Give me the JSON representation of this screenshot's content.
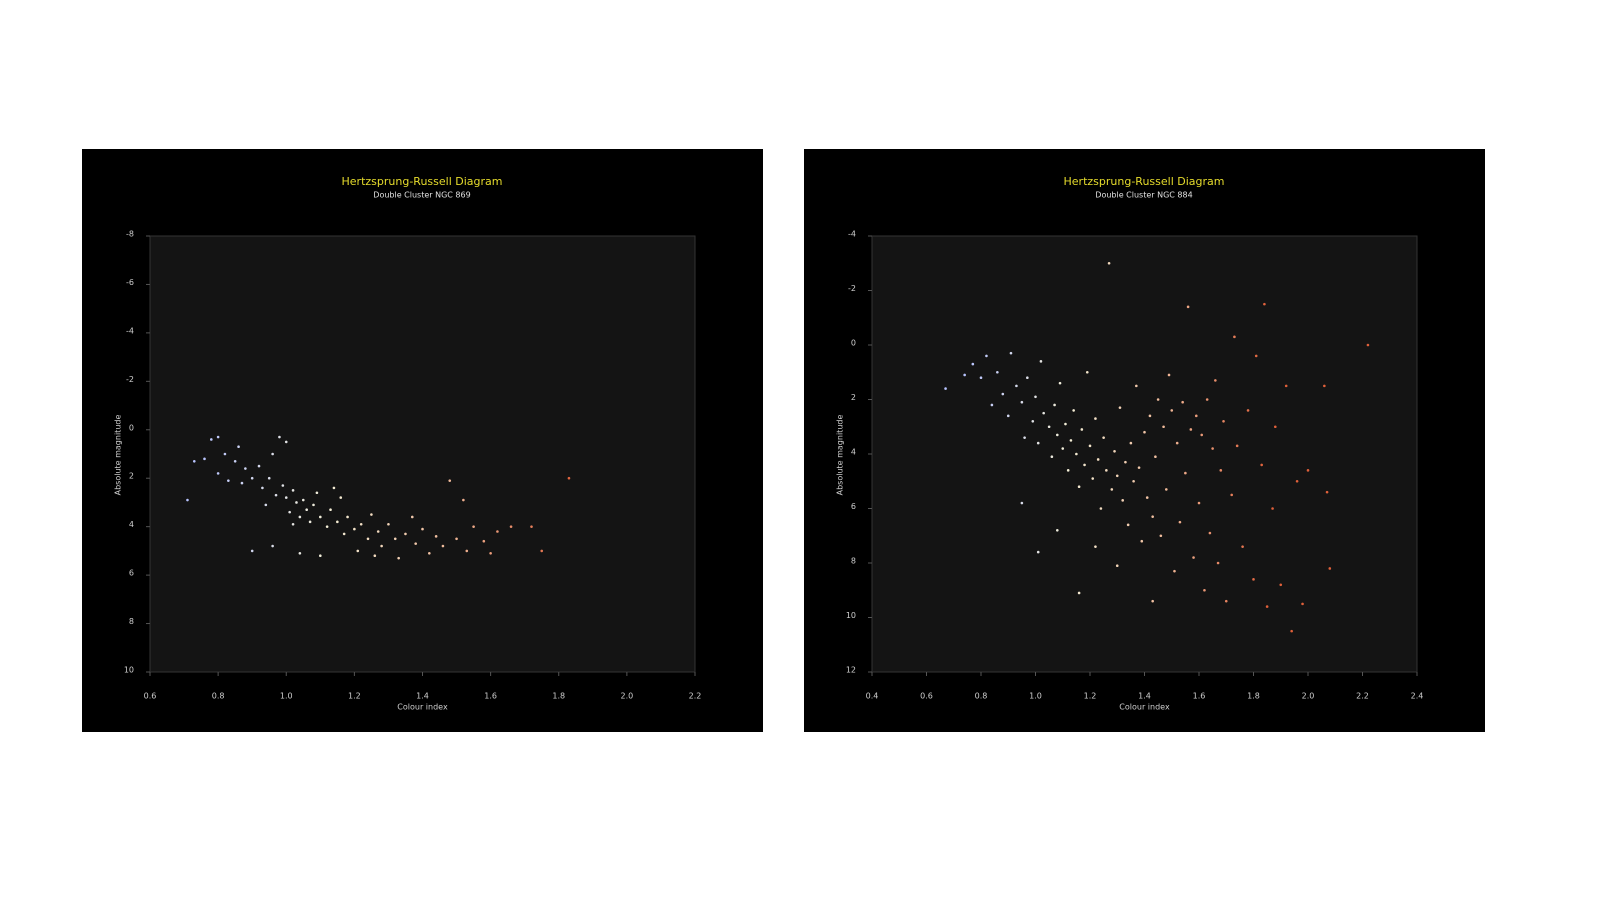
{
  "chart_data": [
    {
      "type": "scatter",
      "title": "Hertzsprung-Russell Diagram",
      "subtitle": "Double Cluster NGC 869",
      "x_label": "Colour index",
      "y_label": "Absolute magnitude",
      "xlim": [
        0.6,
        2.2
      ],
      "xticks": [
        0.6,
        0.8,
        {
          "value": 1,
          "label": "1.0"
        },
        1.2,
        1.4,
        1.6,
        1.8,
        {
          "value": 2,
          "label": "2.0"
        },
        2.2
      ],
      "ylim": [
        -8,
        10
      ],
      "yticks": [
        -8,
        -6,
        -4,
        -2,
        0,
        2,
        4,
        6,
        8,
        10
      ],
      "y_inverted": true,
      "color_stops": [
        "#b8c4ff",
        "#f4f0d8",
        "#f0b898",
        "#e0603a"
      ],
      "x": [
        0.71,
        0.73,
        0.76,
        0.78,
        0.8,
        0.8,
        0.82,
        0.83,
        0.85,
        0.86,
        0.88,
        0.9,
        0.9,
        0.92,
        0.93,
        0.95,
        0.96,
        0.97,
        0.98,
        0.99,
        1.0,
        1.0,
        1.01,
        1.02,
        1.03,
        1.04,
        1.05,
        1.06,
        1.07,
        1.08,
        1.09,
        1.1,
        1.1,
        1.12,
        1.13,
        1.15,
        1.16,
        1.17,
        1.18,
        1.2,
        1.21,
        1.22,
        1.24,
        1.25,
        1.27,
        1.28,
        1.3,
        1.32,
        1.33,
        1.35,
        1.37,
        1.38,
        1.4,
        1.42,
        1.44,
        1.46,
        1.48,
        1.5,
        1.52,
        1.53,
        1.55,
        1.58,
        1.6,
        1.62,
        1.66,
        1.72,
        1.75,
        1.83,
        0.96,
        1.04,
        1.14,
        1.26,
        0.87,
        0.94,
        1.02
      ],
      "values": [
        2.9,
        1.3,
        1.2,
        0.4,
        0.3,
        1.8,
        1.0,
        2.1,
        1.3,
        0.7,
        1.6,
        2.0,
        5.0,
        1.5,
        2.4,
        2.0,
        1.0,
        2.7,
        0.3,
        2.3,
        2.8,
        0.5,
        3.4,
        2.5,
        3.0,
        3.6,
        2.9,
        3.3,
        3.8,
        3.1,
        2.6,
        3.6,
        5.2,
        4.0,
        3.3,
        3.8,
        2.8,
        4.3,
        3.6,
        4.1,
        5.0,
        3.9,
        4.5,
        3.5,
        4.2,
        4.8,
        3.9,
        4.5,
        5.3,
        4.3,
        3.6,
        4.7,
        4.1,
        5.1,
        4.4,
        4.8,
        2.1,
        4.5,
        2.9,
        5.0,
        4.0,
        4.6,
        5.1,
        4.2,
        4.0,
        4.0,
        5.0,
        2.0,
        4.8,
        5.1,
        2.4,
        5.2,
        2.2,
        3.1,
        3.9
      ]
    },
    {
      "type": "scatter",
      "title": "Hertzsprung-Russell Diagram",
      "subtitle": "Double Cluster NGC 884",
      "x_label": "Colour index",
      "y_label": "Absolute magnitude",
      "xlim": [
        0.4,
        2.4
      ],
      "xticks": [
        0.4,
        0.6,
        0.8,
        {
          "value": 1,
          "label": "1.0"
        },
        1.2,
        1.4,
        1.6,
        1.8,
        {
          "value": 2,
          "label": "2.0"
        },
        2.2,
        2.4
      ],
      "ylim": [
        -4,
        12
      ],
      "yticks": [
        -4,
        -2,
        0,
        2,
        4,
        6,
        8,
        10,
        12
      ],
      "y_inverted": true,
      "color_stops": [
        "#b8c4ff",
        "#f4f0d8",
        "#f0b898",
        "#e0603a"
      ],
      "x": [
        0.67,
        0.74,
        0.77,
        0.8,
        0.82,
        0.84,
        0.86,
        0.88,
        0.9,
        0.91,
        0.93,
        0.95,
        0.96,
        0.97,
        0.99,
        1.0,
        1.01,
        1.02,
        1.03,
        1.05,
        1.06,
        1.07,
        1.08,
        1.09,
        1.1,
        1.11,
        1.12,
        1.13,
        1.14,
        1.15,
        1.16,
        1.17,
        1.18,
        1.19,
        1.2,
        1.21,
        1.22,
        1.23,
        1.24,
        1.25,
        1.26,
        1.27,
        1.28,
        1.29,
        1.3,
        1.31,
        1.32,
        1.33,
        1.34,
        1.35,
        1.36,
        1.37,
        1.38,
        1.39,
        1.4,
        1.41,
        1.42,
        1.43,
        1.44,
        1.45,
        1.46,
        1.47,
        1.48,
        1.49,
        1.5,
        1.51,
        1.52,
        1.53,
        1.54,
        1.55,
        1.56,
        1.57,
        1.58,
        1.59,
        1.6,
        1.61,
        1.62,
        1.63,
        1.64,
        1.65,
        1.66,
        1.67,
        1.68,
        1.69,
        1.7,
        1.72,
        1.73,
        1.74,
        1.76,
        1.78,
        1.8,
        1.81,
        1.83,
        1.84,
        1.85,
        1.87,
        1.88,
        1.9,
        1.92,
        1.94,
        1.96,
        1.98,
        2.0,
        2.06,
        2.07,
        2.08,
        2.22,
        1.01,
        1.08,
        1.16,
        1.3,
        0.95,
        1.22,
        1.43
      ],
      "values": [
        1.6,
        1.1,
        0.7,
        1.2,
        0.4,
        2.2,
        1.0,
        1.8,
        2.6,
        0.3,
        1.5,
        2.1,
        3.4,
        1.2,
        2.8,
        1.9,
        3.6,
        0.6,
        2.5,
        3.0,
        4.1,
        2.2,
        3.3,
        1.4,
        3.8,
        2.9,
        4.6,
        3.5,
        2.4,
        4.0,
        5.2,
        3.1,
        4.4,
        1.0,
        3.7,
        4.9,
        2.7,
        4.2,
        6.0,
        3.4,
        4.6,
        -3.0,
        5.3,
        3.9,
        4.8,
        2.3,
        5.7,
        4.3,
        6.6,
        3.6,
        5.0,
        1.5,
        4.5,
        7.2,
        3.2,
        5.6,
        2.6,
        6.3,
        4.1,
        2.0,
        7.0,
        3.0,
        5.3,
        1.1,
        2.4,
        8.3,
        3.6,
        6.5,
        2.1,
        4.7,
        -1.4,
        3.1,
        7.8,
        2.6,
        5.8,
        3.3,
        9.0,
        2.0,
        6.9,
        3.8,
        1.3,
        8.0,
        4.6,
        2.8,
        9.4,
        5.5,
        -0.3,
        3.7,
        7.4,
        2.4,
        8.6,
        0.4,
        4.4,
        -1.5,
        9.6,
        6.0,
        3.0,
        8.8,
        1.5,
        10.5,
        5.0,
        9.5,
        4.6,
        1.5,
        5.4,
        8.2,
        0.0,
        7.6,
        6.8,
        9.1,
        8.1,
        5.8,
        7.4,
        9.4
      ]
    }
  ]
}
